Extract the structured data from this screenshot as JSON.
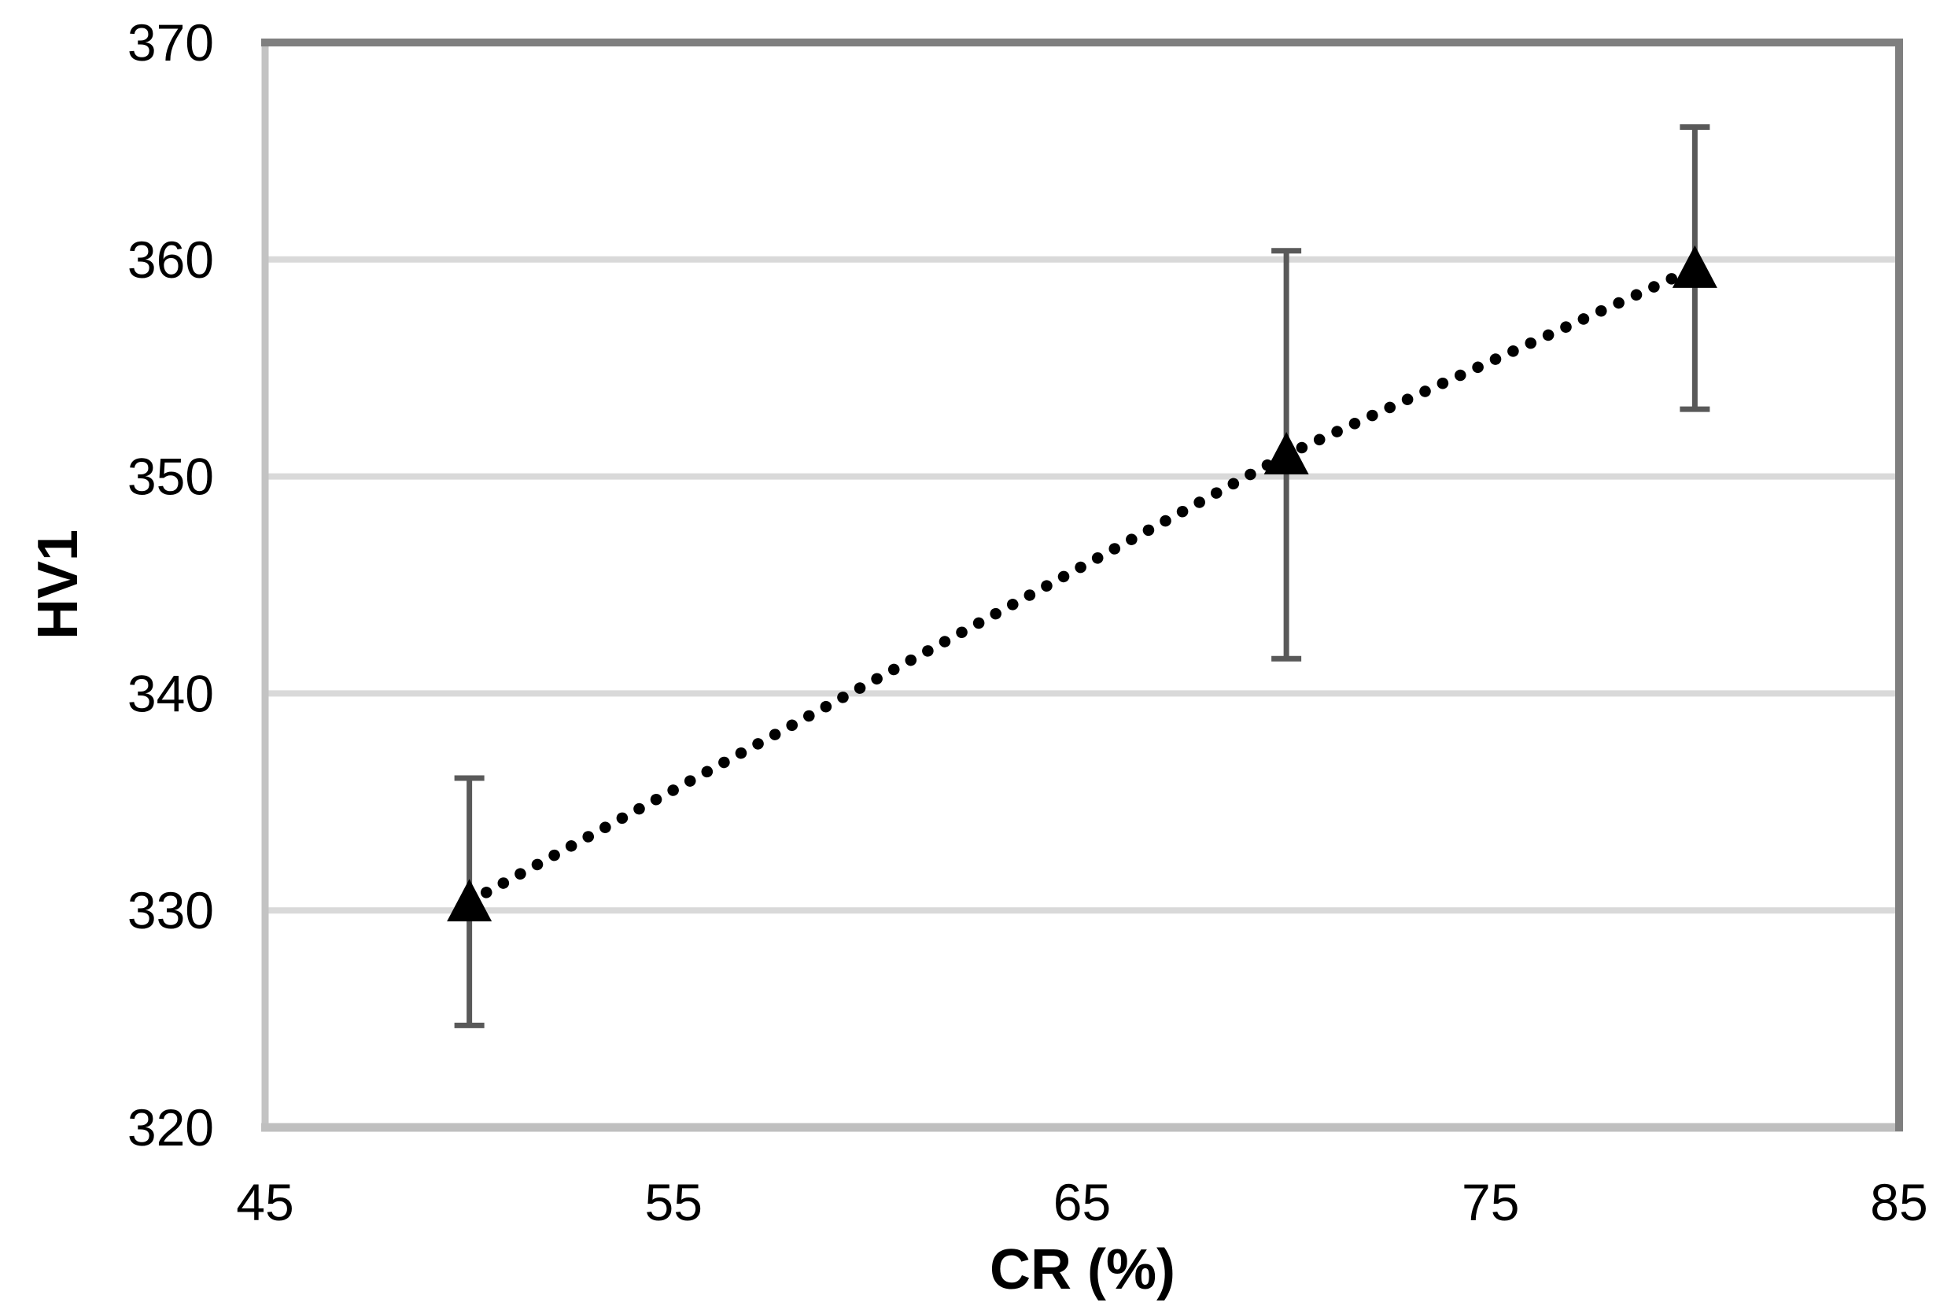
{
  "chart_data": {
    "type": "scatter",
    "title": "",
    "xlabel": "CR (%)",
    "ylabel": "HV1",
    "xlim": [
      45,
      85
    ],
    "ylim": [
      320,
      370
    ],
    "x_ticks": [
      45,
      55,
      65,
      75,
      85
    ],
    "y_ticks": [
      320,
      330,
      340,
      350,
      360,
      370
    ],
    "grid": "horizontal",
    "legend": "none",
    "series": [
      {
        "name": "HV1",
        "marker": "filled-triangle-up",
        "line_style": "dotted",
        "x": [
          50,
          70,
          80
        ],
        "y": [
          330.4,
          351.0,
          359.6
        ],
        "y_err": [
          5.7,
          9.4,
          6.5
        ]
      }
    ],
    "colors": {
      "marker": "#000000",
      "dotted_line": "#000000",
      "error_bar": "#595959",
      "gridline": "#d9d9d9",
      "border_top": "#7f7f7f",
      "border_right": "#7f7f7f",
      "border_bottom": "#bfbfbf",
      "border_left": "#c3c3c3",
      "text": "#000000",
      "background": "#ffffff"
    }
  }
}
